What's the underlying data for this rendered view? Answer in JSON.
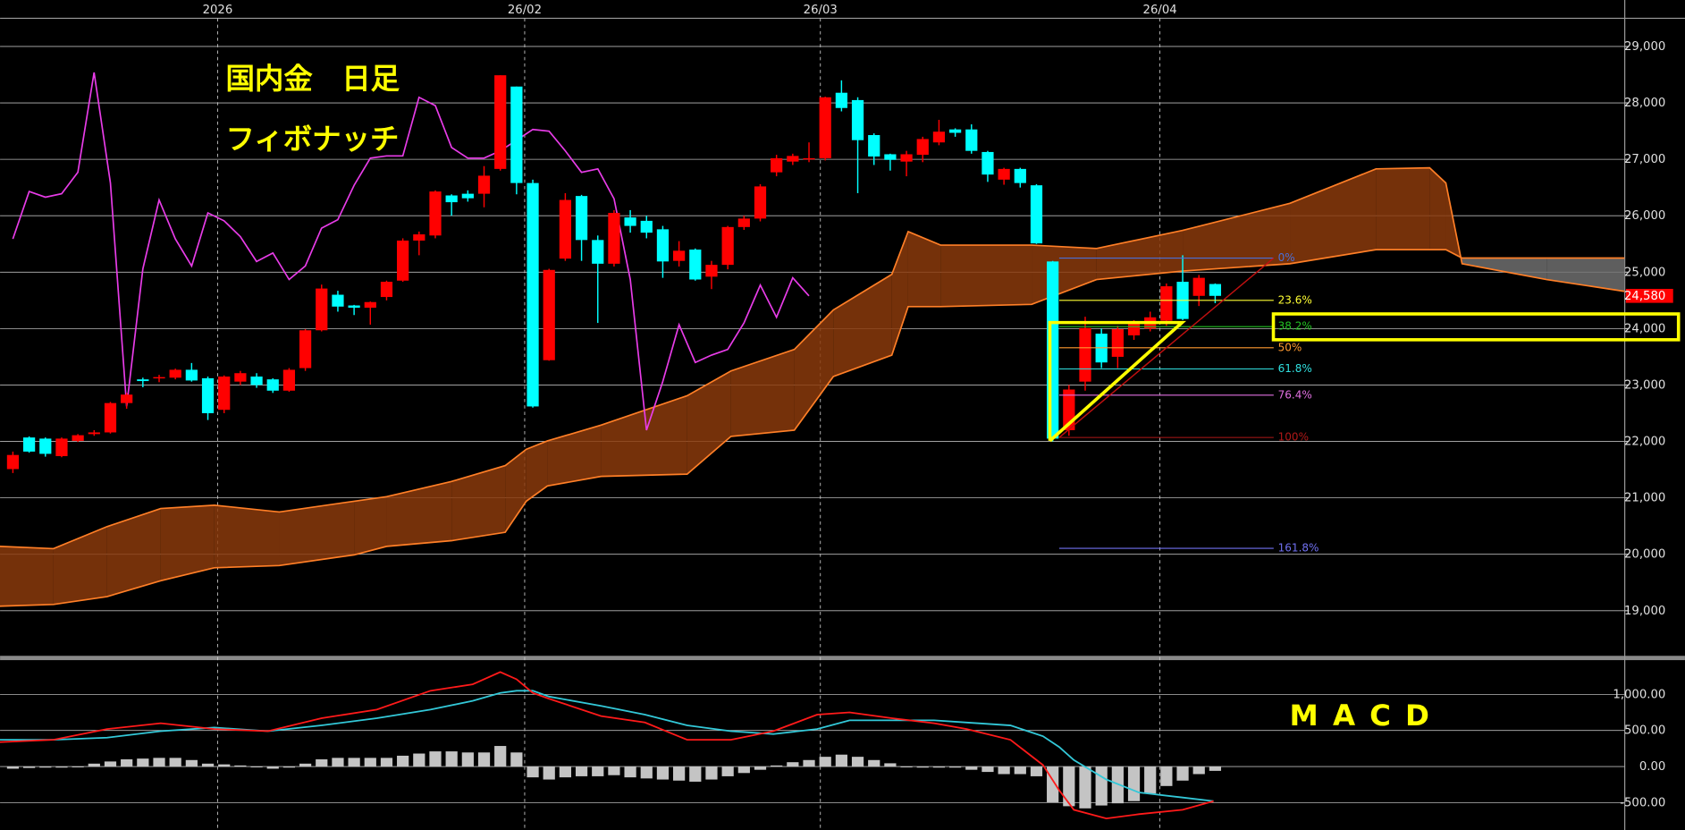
{
  "chart_data": {
    "type": "candlestick",
    "title": "国内金　日足",
    "subtitle": "フィボナッチ",
    "xlim": [
      -0.79,
      99.21
    ],
    "xticks": [
      {
        "value": 12.6,
        "label": "2026"
      },
      {
        "value": 31.5,
        "label": "26/02"
      },
      {
        "value": 49.7,
        "label": "26/03"
      },
      {
        "value": 70.6,
        "label": "26/04"
      }
    ],
    "ylim": [
      18200,
      29500
    ],
    "yticks": [
      {
        "value": 19000,
        "label": "19,000"
      },
      {
        "value": 20000,
        "label": "20,000"
      },
      {
        "value": 21000,
        "label": "21,000"
      },
      {
        "value": 22000,
        "label": "22,000"
      },
      {
        "value": 23000,
        "label": "23,000"
      },
      {
        "value": 24000,
        "label": "24,000"
      },
      {
        "value": 25000,
        "label": "25,000"
      },
      {
        "value": 26000,
        "label": "26,000"
      },
      {
        "value": 27000,
        "label": "27,000"
      },
      {
        "value": 28000,
        "label": "28,000"
      },
      {
        "value": 29000,
        "label": "29,000"
      }
    ],
    "grid": true,
    "up_color": "#ff0000",
    "down_color": "#00ffff",
    "open": [
      21510,
      22070,
      22050,
      21740,
      22010,
      22130,
      22160,
      22680,
      23100,
      23120,
      23130,
      23270,
      23120,
      22560,
      23060,
      23150,
      23100,
      22900,
      23300,
      23970,
      24600,
      24410,
      24370,
      24560,
      24850,
      25560,
      25650,
      26360,
      26390,
      26390,
      26830,
      28290,
      26580,
      23440,
      25240,
      26350,
      25570,
      25150,
      25970,
      25910,
      25760,
      25200,
      25400,
      24920,
      25130,
      25800,
      25950,
      26770,
      26960,
      27000,
      27020,
      28180,
      28050,
      27430,
      27090,
      26960,
      27080,
      27300,
      27530,
      27530,
      27130,
      26640,
      26830,
      26540,
      25190,
      22200,
      23060,
      23910,
      23500,
      23880,
      24000,
      24140,
      24830,
      24580,
      24790
    ],
    "high": [
      21820,
      22090,
      22070,
      22070,
      22130,
      22200,
      22700,
      22860,
      23130,
      23180,
      23290,
      23390,
      23150,
      23170,
      23250,
      23210,
      23120,
      23300,
      23990,
      24780,
      24670,
      24420,
      24480,
      24850,
      25600,
      25720,
      26450,
      26380,
      26450,
      26880,
      28490,
      28290,
      26640,
      25060,
      26400,
      26370,
      25650,
      26100,
      26100,
      26000,
      25820,
      25550,
      25420,
      25200,
      25820,
      26000,
      26560,
      27080,
      27100,
      27300,
      28110,
      28400,
      28100,
      27460,
      27100,
      27150,
      27400,
      27700,
      27550,
      27620,
      27150,
      26850,
      26850,
      26560,
      25200,
      23000,
      24210,
      24000,
      24050,
      24150,
      24300,
      24800,
      25300,
      24950,
      24800
    ],
    "low": [
      21440,
      21800,
      21730,
      21720,
      21990,
      22100,
      22140,
      22580,
      22960,
      23050,
      23100,
      23060,
      22380,
      22500,
      23000,
      22950,
      22860,
      22880,
      23250,
      23950,
      24300,
      24240,
      24070,
      24500,
      24830,
      25300,
      25600,
      26000,
      26250,
      26150,
      26800,
      26380,
      22600,
      23430,
      25200,
      25200,
      24100,
      25100,
      25700,
      25600,
      24900,
      25100,
      24850,
      24700,
      25050,
      25750,
      25900,
      26700,
      26900,
      26950,
      26980,
      27850,
      26400,
      26900,
      26800,
      26700,
      26950,
      27250,
      27400,
      27100,
      26600,
      26550,
      26500,
      25500,
      22000,
      22100,
      22900,
      23300,
      23300,
      23800,
      23950,
      24050,
      24150,
      24400,
      24450
    ],
    "close": [
      21760,
      21820,
      21780,
      22050,
      22110,
      22160,
      22680,
      22830,
      23070,
      23140,
      23270,
      23080,
      22500,
      23150,
      23210,
      23000,
      22900,
      23270,
      23970,
      24710,
      24390,
      24370,
      24470,
      24830,
      25560,
      25670,
      26430,
      26240,
      26310,
      26710,
      28490,
      26580,
      22620,
      25040,
      26280,
      25570,
      25150,
      26050,
      25820,
      25700,
      25190,
      25380,
      24870,
      25130,
      25800,
      25950,
      26520,
      27020,
      27060,
      27020,
      28100,
      27910,
      27340,
      27050,
      26990,
      27090,
      27360,
      27490,
      27470,
      27150,
      26730,
      26830,
      26580,
      25510,
      22050,
      22920,
      24010,
      23400,
      23990,
      24100,
      24200,
      24750,
      24170,
      24900,
      24580
    ],
    "last_price": {
      "value": 24580,
      "label": "24,580",
      "color": "#ff0000"
    },
    "cloud": {
      "color": "#ff7f27",
      "fill": "#8a3a0c",
      "inverted_fill": "#6e6e6e",
      "x": [
        -0.8,
        2.5,
        5.8,
        9.1,
        12.4,
        16.4,
        21.0,
        23.0,
        27.0,
        30.3,
        31.6,
        32.9,
        36.2,
        41.5,
        44.2,
        48.1,
        50.5,
        54.1,
        55.1,
        57.1,
        62.7,
        66.7,
        72.0,
        78.6,
        83.9,
        87.2,
        88.2,
        89.2,
        94.4,
        99.2
      ],
      "span_a": [
        20140,
        20100,
        20490,
        20810,
        20870,
        20750,
        20940,
        21020,
        21290,
        21570,
        21860,
        22010,
        22290,
        22810,
        23250,
        23630,
        24330,
        24960,
        25720,
        25480,
        25480,
        25420,
        25740,
        26220,
        26830,
        26850,
        26580,
        25150,
        24870,
        24660
      ],
      "span_b": [
        19080,
        19110,
        19250,
        19530,
        19760,
        19800,
        19990,
        20140,
        20240,
        20390,
        20940,
        21210,
        21380,
        21420,
        22090,
        22200,
        23150,
        23530,
        24390,
        24390,
        24430,
        24870,
        25020,
        25150,
        25400,
        25400,
        25400,
        25250,
        25250,
        25250
      ]
    },
    "lagging_span": {
      "color": "#e83ce8",
      "values": [
        25590,
        26430,
        26330,
        26390,
        26770,
        28540,
        26580,
        22620,
        25060,
        26280,
        25590,
        25110,
        26050,
        25910,
        25630,
        25190,
        25340,
        24870,
        25110,
        25780,
        25930,
        26540,
        27020,
        27060,
        27060,
        28100,
        27950,
        27210,
        27020,
        27020,
        27150,
        27340,
        27530,
        27500,
        27150,
        26770,
        26830,
        26300,
        24870,
        22200,
        23060,
        24070,
        23400,
        23530,
        23630,
        24100,
        24770,
        24200,
        24900,
        24580
      ]
    },
    "fibonacci": {
      "x": [
        64.4,
        77.6
      ],
      "trend_color": "#c01010",
      "levels": [
        {
          "label": "0%",
          "price": 25250,
          "color": "#4a6fd8"
        },
        {
          "label": "23.6%",
          "price": 24500,
          "color": "#ffff33"
        },
        {
          "label": "38.2%",
          "price": 24035,
          "color": "#22c022"
        },
        {
          "label": "50%",
          "price": 23660,
          "color": "#ff9a30"
        },
        {
          "label": "61.8%",
          "price": 23285,
          "color": "#30e0e0"
        },
        {
          "label": "76.4%",
          "price": 22820,
          "color": "#e070e0"
        },
        {
          "label": "100%",
          "price": 22070,
          "color": "#b01818"
        },
        {
          "label": "161.8%",
          "price": 20105,
          "color": "#7070f0"
        }
      ]
    },
    "macd": {
      "title": "M A C D",
      "ylim": [
        -850,
        1460
      ],
      "yticks": [
        {
          "value": -500,
          "label": "-500.00"
        },
        {
          "value": 0,
          "label": "0.00"
        },
        {
          "value": 500,
          "label": "500.00"
        },
        {
          "value": 1000,
          "label": "1,000.00"
        }
      ],
      "histogram": {
        "color": "#c4c4c4",
        "values": [
          -30,
          -20,
          -15,
          -15,
          -10,
          40,
          70,
          100,
          110,
          120,
          120,
          90,
          40,
          30,
          15,
          0,
          -30,
          -15,
          40,
          100,
          120,
          120,
          120,
          120,
          150,
          180,
          210,
          210,
          195,
          195,
          285,
          195,
          -150,
          -180,
          -150,
          -135,
          -135,
          -120,
          -150,
          -165,
          -180,
          -195,
          -210,
          -180,
          -135,
          -90,
          -45,
          15,
          60,
          90,
          135,
          165,
          135,
          90,
          45,
          0,
          -15,
          -15,
          -15,
          -45,
          -75,
          -105,
          -105,
          -135,
          -495,
          -550,
          -580,
          -540,
          -510,
          -480,
          -375,
          -270,
          -195,
          -105,
          -60
        ]
      },
      "x": [
        -0.8,
        2.5,
        5.8,
        9.1,
        12.4,
        15.7,
        19.0,
        22.4,
        25.7,
        28.3,
        30.0,
        31.0,
        32.0,
        33.0,
        36.2,
        38.9,
        41.5,
        44.2,
        46.8,
        49.5,
        51.5,
        54.1,
        56.7,
        58.7,
        61.4,
        63.4,
        64.4,
        65.3,
        67.3,
        69.3,
        72.0,
        73.9
      ],
      "macd_line": {
        "color": "#ff1a1a",
        "values": [
          340,
          370,
          520,
          600,
          520,
          490,
          670,
          790,
          1050,
          1140,
          1310,
          1210,
          1020,
          940,
          700,
          610,
          370,
          370,
          490,
          720,
          750,
          670,
          600,
          520,
          370,
          20,
          -330,
          -600,
          -720,
          -660,
          -600,
          -480
        ]
      },
      "signal_line": {
        "color": "#33c8d8",
        "values": [
          370,
          370,
          400,
          490,
          540,
          490,
          570,
          670,
          790,
          910,
          1020,
          1050,
          1050,
          970,
          840,
          720,
          570,
          490,
          450,
          520,
          640,
          640,
          640,
          610,
          570,
          420,
          270,
          90,
          -180,
          -360,
          -430,
          -480
        ]
      }
    }
  }
}
